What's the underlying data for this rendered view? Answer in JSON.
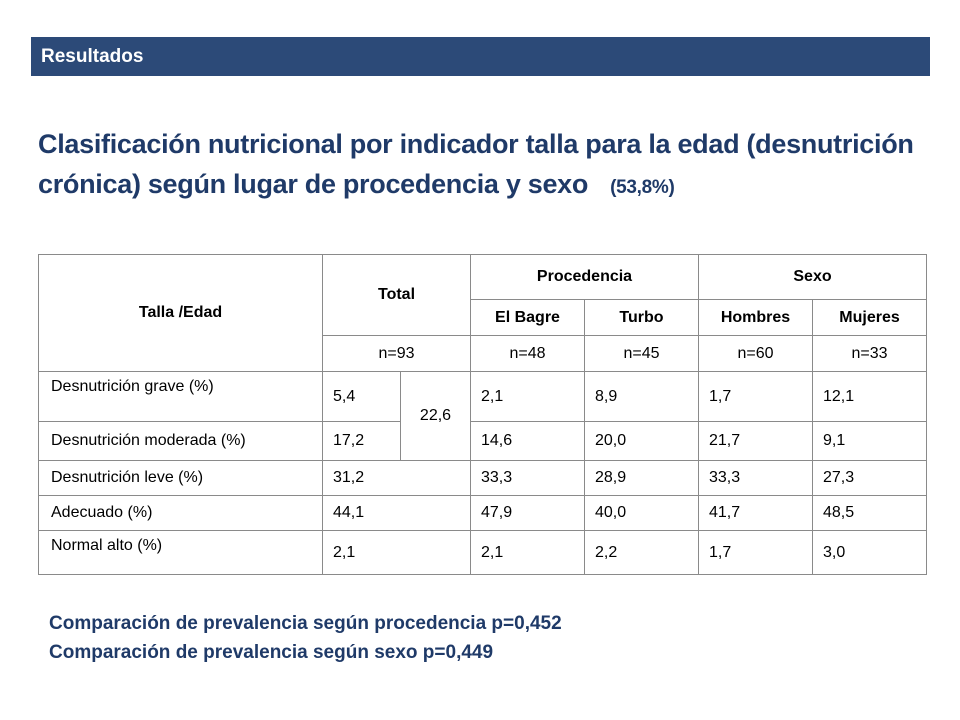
{
  "banner": {
    "title": "Resultados"
  },
  "title": {
    "line1": "Clasificación nutricional por indicador talla para la edad (desnutrición",
    "line2": "crónica) según lugar de procedencia y sexo",
    "percent": "(53,8%)"
  },
  "table": {
    "corner": "Talla /Edad",
    "total": "Total",
    "procedencia": "Procedencia",
    "sexo": "Sexo",
    "subheaders": [
      "El Bagre",
      "Turbo",
      "Hombres",
      "Mujeres"
    ],
    "n": [
      "n=93",
      "n=48",
      "n=45",
      "n=60",
      "n=33"
    ],
    "merged_total": "22,6",
    "rows": [
      {
        "label": "Desnutrición grave (%)",
        "total": "5,4",
        "el_bagre": "2,1",
        "turbo": "8,9",
        "hombres": "1,7",
        "mujeres": "12,1"
      },
      {
        "label": "Desnutrición moderada (%)",
        "total": "17,2",
        "el_bagre": "14,6",
        "turbo": "20,0",
        "hombres": "21,7",
        "mujeres": "9,1"
      },
      {
        "label": "Desnutrición leve (%)",
        "total": "31,2",
        "el_bagre": "33,3",
        "turbo": "28,9",
        "hombres": "33,3",
        "mujeres": "27,3"
      },
      {
        "label": "Adecuado (%)",
        "total": "44,1",
        "el_bagre": "47,9",
        "turbo": "40,0",
        "hombres": "41,7",
        "mujeres": "48,5"
      },
      {
        "label": "Normal alto (%)",
        "total": "2,1",
        "el_bagre": "2,1",
        "turbo": "2,2",
        "hombres": "1,7",
        "mujeres": "3,0"
      }
    ]
  },
  "notes": {
    "procedencia": "Comparación de prevalencia según procedencia p=0,452",
    "sexo": "Comparación de prevalencia según sexo p=0,449"
  }
}
